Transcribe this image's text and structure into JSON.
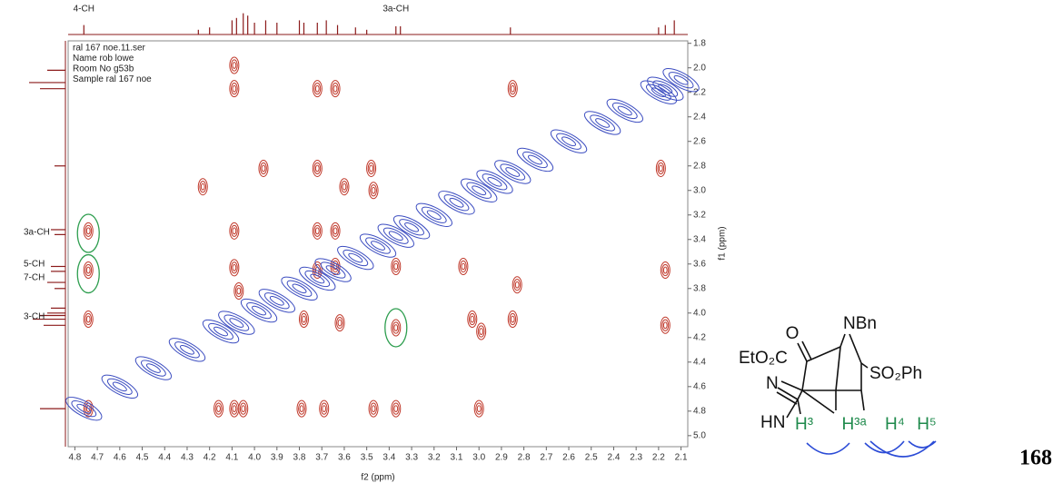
{
  "chart_data": {
    "type": "noesy",
    "xlabel": "f2 (ppm)",
    "ylabel": "f1 (ppm)",
    "xlim": [
      4.83,
      2.07
    ],
    "ylim": [
      1.78,
      5.09
    ],
    "xticks": [
      4.8,
      4.7,
      4.6,
      4.5,
      4.4,
      4.3,
      4.2,
      4.1,
      {
        "value": 4,
        "label": "4.0"
      },
      3.9,
      3.8,
      3.7,
      3.6,
      3.5,
      3.4,
      3.3,
      3.2,
      3.1,
      {
        "value": 3,
        "label": "3.0"
      },
      2.9,
      2.8,
      2.7,
      2.6,
      2.5,
      2.4,
      2.3,
      2.2,
      2.1
    ],
    "yticks": [
      1.8,
      {
        "value": 2,
        "label": "2.0"
      },
      2.2,
      2.4,
      2.6,
      2.8,
      {
        "value": 3,
        "label": "3.0"
      },
      3.2,
      3.4,
      3.6,
      3.8,
      {
        "value": 4,
        "label": "4.0"
      },
      4.2,
      4.4,
      4.6,
      4.8,
      {
        "value": 5,
        "label": "5.0"
      }
    ],
    "info": [
      "ral 167 noe.11.ser",
      "Name rob lowe",
      "Room No g53b",
      "Sample ral 167 noe"
    ],
    "f2_labels": [
      {
        "text": "4-CH",
        "x": 4.76
      },
      {
        "text": "3a-CH",
        "x": 3.37
      }
    ],
    "f1_labels": [
      {
        "text": "3a-CH",
        "y": 3.34
      },
      {
        "text": "5-CH",
        "y": 3.6
      },
      {
        "text": "7-CH",
        "y": 3.71
      },
      {
        "text": "3-CH",
        "y": 4.03
      }
    ],
    "f2_projection": {
      "color": "#8b1a1a",
      "x": [
        4.76,
        4.25,
        4.2,
        4.1,
        4.08,
        4.05,
        4.03,
        4.0,
        3.95,
        3.9,
        3.8,
        3.78,
        3.72,
        3.68,
        3.63,
        3.55,
        3.5,
        3.37,
        3.35,
        2.86,
        2.2,
        2.17,
        2.13
      ],
      "intensity": [
        0.4,
        0.2,
        0.3,
        0.6,
        0.7,
        0.9,
        0.8,
        0.5,
        0.6,
        0.5,
        0.6,
        0.5,
        0.5,
        0.6,
        0.4,
        0.3,
        0.2,
        0.35,
        0.35,
        0.3,
        0.3,
        0.4,
        0.6
      ]
    },
    "f1_projection": {
      "color": "#8b1a1a",
      "y": [
        2.02,
        2.12,
        2.17,
        2.8,
        3.32,
        3.36,
        3.62,
        3.66,
        3.75,
        3.8,
        3.96,
        4.0,
        4.02,
        4.05,
        4.1,
        4.78
      ],
      "intensity": [
        0.5,
        1,
        0.7,
        0.3,
        0.4,
        0.3,
        0.4,
        0.4,
        0.5,
        0.3,
        0.4,
        0.5,
        0.7,
        0.9,
        0.6,
        0.7
      ]
    },
    "series": [
      {
        "color": "#c0392b",
        "x": [
          4.09,
          4.09,
          3.72,
          3.64,
          2.85,
          3.96,
          3.72,
          3.48,
          2.19,
          4.23,
          3.6,
          3.47,
          4.74,
          4.09,
          3.72,
          3.64,
          4.74,
          4.09,
          3.72,
          3.64,
          3.37,
          3.07,
          2.83,
          2.17,
          4.74,
          4.07,
          3.78,
          3.62,
          3.03,
          2.99,
          2.85,
          3.37,
          2.17,
          4.74,
          4.09,
          4.05,
          3.79,
          3.69,
          3.37,
          3.47,
          3.0,
          4.16
        ],
        "y": [
          1.98,
          2.17,
          2.17,
          2.17,
          2.17,
          2.82,
          2.82,
          2.82,
          2.82,
          2.97,
          2.97,
          3.0,
          3.33,
          3.33,
          3.33,
          3.33,
          3.65,
          3.63,
          3.65,
          3.62,
          3.62,
          3.62,
          3.77,
          3.65,
          4.05,
          3.82,
          4.05,
          4.08,
          4.05,
          4.15,
          4.05,
          4.12,
          4.1,
          4.78,
          4.78,
          4.78,
          4.78,
          4.78,
          4.78,
          4.78,
          4.78,
          4.78
        ]
      },
      {
        "color": "#3b4cc0",
        "x": [
          4.76,
          4.6,
          4.45,
          4.3,
          4.15,
          4.08,
          3.98,
          3.9,
          3.8,
          3.72,
          3.65,
          3.55,
          3.45,
          3.37,
          3.3,
          3.2,
          3.1,
          3.0,
          2.93,
          2.85,
          2.75,
          2.6,
          2.45,
          2.35,
          2.2,
          2.17,
          2.1
        ],
        "y": [
          4.78,
          4.6,
          4.45,
          4.3,
          4.15,
          4.08,
          3.98,
          3.9,
          3.8,
          3.72,
          3.65,
          3.55,
          3.45,
          3.37,
          3.3,
          3.2,
          3.1,
          3.0,
          2.93,
          2.85,
          2.75,
          2.6,
          2.45,
          2.35,
          2.2,
          2.17,
          2.1
        ]
      }
    ],
    "highlights": {
      "color": "#2e9e4f",
      "x": [
        4.74,
        4.74,
        3.37
      ],
      "y": [
        3.35,
        3.68,
        4.12
      ]
    },
    "structure": {
      "ketone_o": "O",
      "amine": "NBn",
      "ester": "EtO₂C",
      "sulfone": "SO₂Ph",
      "imine_n": "N",
      "nh": "HN",
      "protons": [
        "H³",
        "H³ᵃ",
        "H⁴",
        "H⁵"
      ],
      "proton_color": "#1f8a4c",
      "compound": "168"
    }
  }
}
